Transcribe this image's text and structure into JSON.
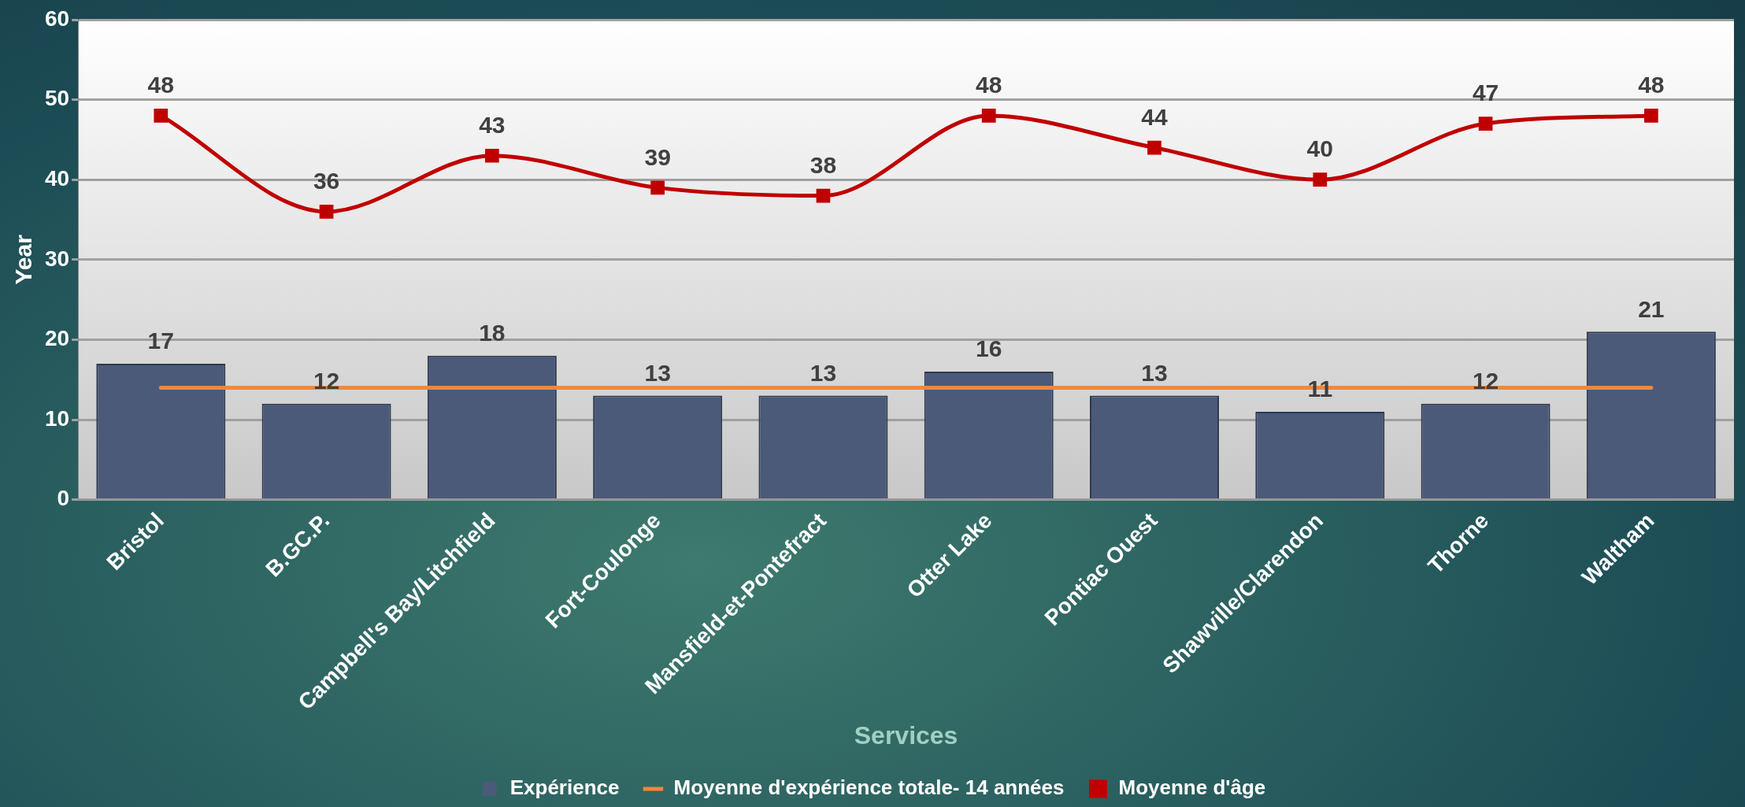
{
  "chart_data": {
    "type": "bar",
    "xlabel": "Services",
    "ylabel": "Year",
    "categories": [
      "Bristol",
      "B.GC.P.",
      "Campbell's Bay/Litchfield",
      "Fort-Coulonge",
      "Mansfield-et-Pontefract",
      "Otter Lake",
      "Pontiac Ouest",
      "Shawville/Clarendon",
      "Thorne",
      "Waltham"
    ],
    "series": [
      {
        "name": "Expérience",
        "color": "#4a5a78",
        "values": [
          17,
          12,
          18,
          13,
          13,
          16,
          13,
          11,
          12,
          21
        ]
      },
      {
        "name": "Moyenne d'âge",
        "type": "line",
        "color": "#c00000",
        "marker": "square",
        "values": [
          48,
          36,
          43,
          39,
          38,
          48,
          44,
          40,
          47,
          48
        ]
      }
    ],
    "ref_lines": [
      {
        "axis": "y",
        "value": 14,
        "label": "Moyenne d'expérience totale- 14 années",
        "color": "#f0883a"
      }
    ],
    "ylim": [
      0,
      60
    ],
    "yticks": [
      0,
      10,
      20,
      30,
      40,
      50,
      60
    ],
    "grid": "y",
    "legend": "bottom",
    "data_labels": true
  }
}
